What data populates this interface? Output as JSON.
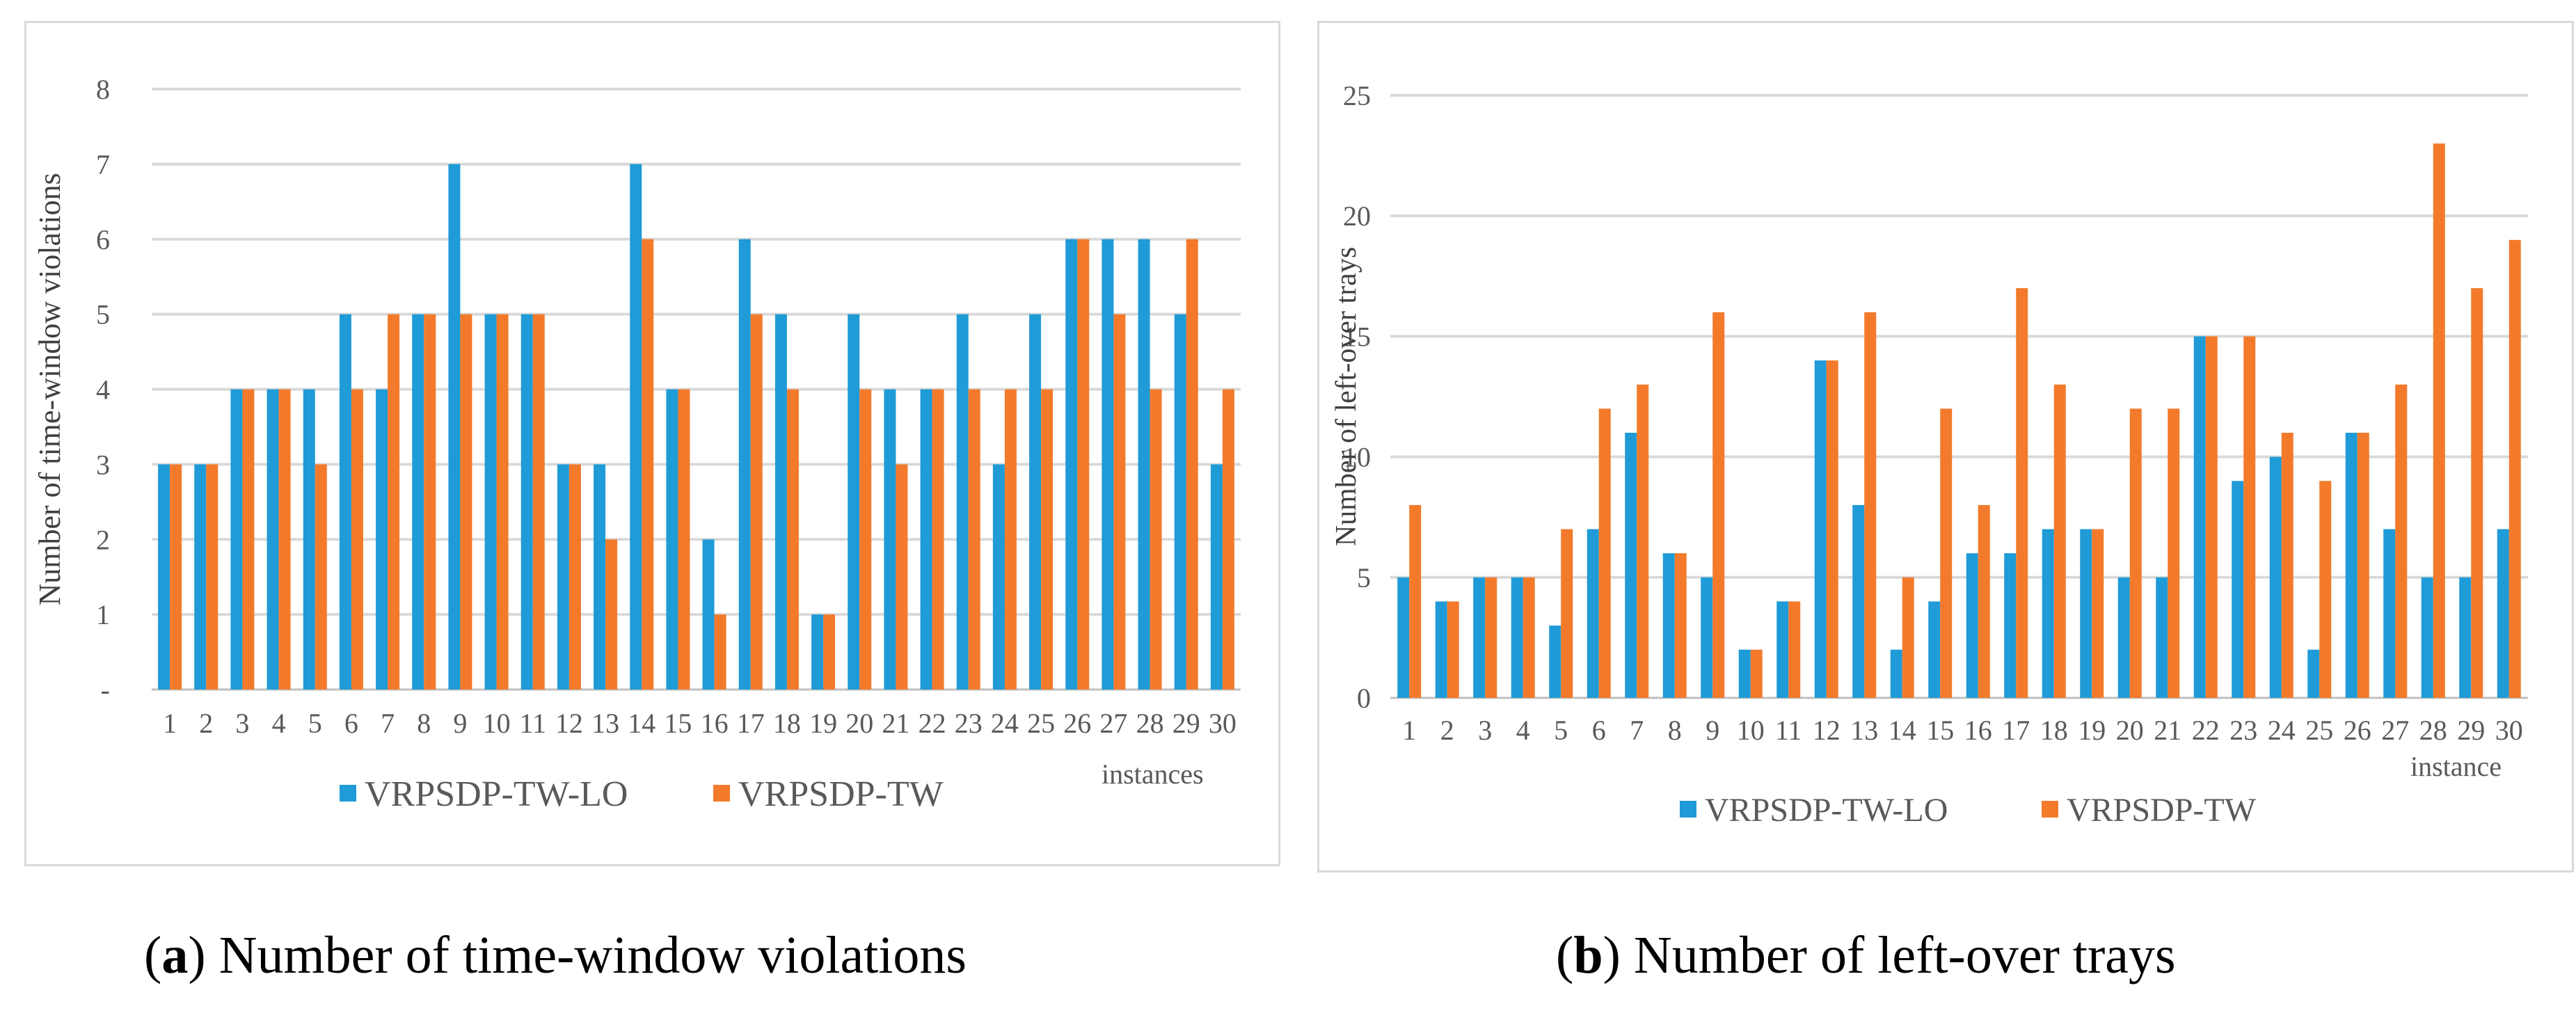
{
  "colors": {
    "lo": "#1F9BD7",
    "tw": "#F37A2B",
    "grid": "#d9d9d9",
    "axis": "#bfbfbf"
  },
  "chart_data": [
    {
      "type": "bar",
      "title": "",
      "caption_letter": "a",
      "caption_text": ") Number of time-window violations",
      "caption_open": "(",
      "ylabel": "Number of time-window violations",
      "xlabel": "instances",
      "ylim": [
        0,
        8
      ],
      "yticks": [
        "-",
        "1",
        "2",
        "3",
        "4",
        "5",
        "6",
        "7",
        "8"
      ],
      "categories": [
        "1",
        "2",
        "3",
        "4",
        "5",
        "6",
        "7",
        "8",
        "9",
        "10",
        "11",
        "12",
        "13",
        "14",
        "15",
        "16",
        "17",
        "18",
        "19",
        "20",
        "21",
        "22",
        "23",
        "24",
        "25",
        "26",
        "27",
        "28",
        "29",
        "30"
      ],
      "series": [
        {
          "name": "VRPSDP-TW-LO",
          "values": [
            3,
            3,
            4,
            4,
            4,
            5,
            4,
            5,
            7,
            5,
            5,
            3,
            3,
            7,
            4,
            2,
            6,
            5,
            1,
            5,
            4,
            4,
            5,
            3,
            5,
            6,
            6,
            6,
            5,
            3
          ]
        },
        {
          "name": "VRPSDP-TW",
          "values": [
            3,
            3,
            4,
            4,
            3,
            4,
            5,
            5,
            5,
            5,
            5,
            3,
            2,
            6,
            4,
            1,
            5,
            4,
            1,
            4,
            3,
            4,
            4,
            4,
            4,
            6,
            5,
            4,
            6,
            4
          ]
        }
      ],
      "legend": "bottom"
    },
    {
      "type": "bar",
      "title": "",
      "caption_letter": "b",
      "caption_text": ") Number of left-over trays",
      "caption_open": "(",
      "ylabel": "Number of left-over trays",
      "xlabel": "instance",
      "ylim": [
        0,
        25
      ],
      "yticks": [
        "0",
        "5",
        "10",
        "15",
        "20",
        "25"
      ],
      "categories": [
        "1",
        "2",
        "3",
        "4",
        "5",
        "6",
        "7",
        "8",
        "9",
        "10",
        "11",
        "12",
        "13",
        "14",
        "15",
        "16",
        "17",
        "18",
        "19",
        "20",
        "21",
        "22",
        "23",
        "24",
        "25",
        "26",
        "27",
        "28",
        "29",
        "30"
      ],
      "series": [
        {
          "name": "VRPSDP-TW-LO",
          "values": [
            5,
            4,
            5,
            5,
            3,
            7,
            11,
            6,
            5,
            2,
            4,
            14,
            8,
            2,
            4,
            6,
            6,
            7,
            7,
            5,
            5,
            15,
            9,
            10,
            2,
            11,
            7,
            5,
            5,
            7
          ]
        },
        {
          "name": "VRPSDP-TW",
          "values": [
            8,
            4,
            5,
            5,
            7,
            12,
            13,
            6,
            16,
            2,
            4,
            14,
            16,
            5,
            12,
            8,
            17,
            13,
            7,
            12,
            12,
            15,
            15,
            11,
            9,
            11,
            13,
            23,
            17,
            19
          ]
        }
      ],
      "legend": "bottom"
    }
  ]
}
